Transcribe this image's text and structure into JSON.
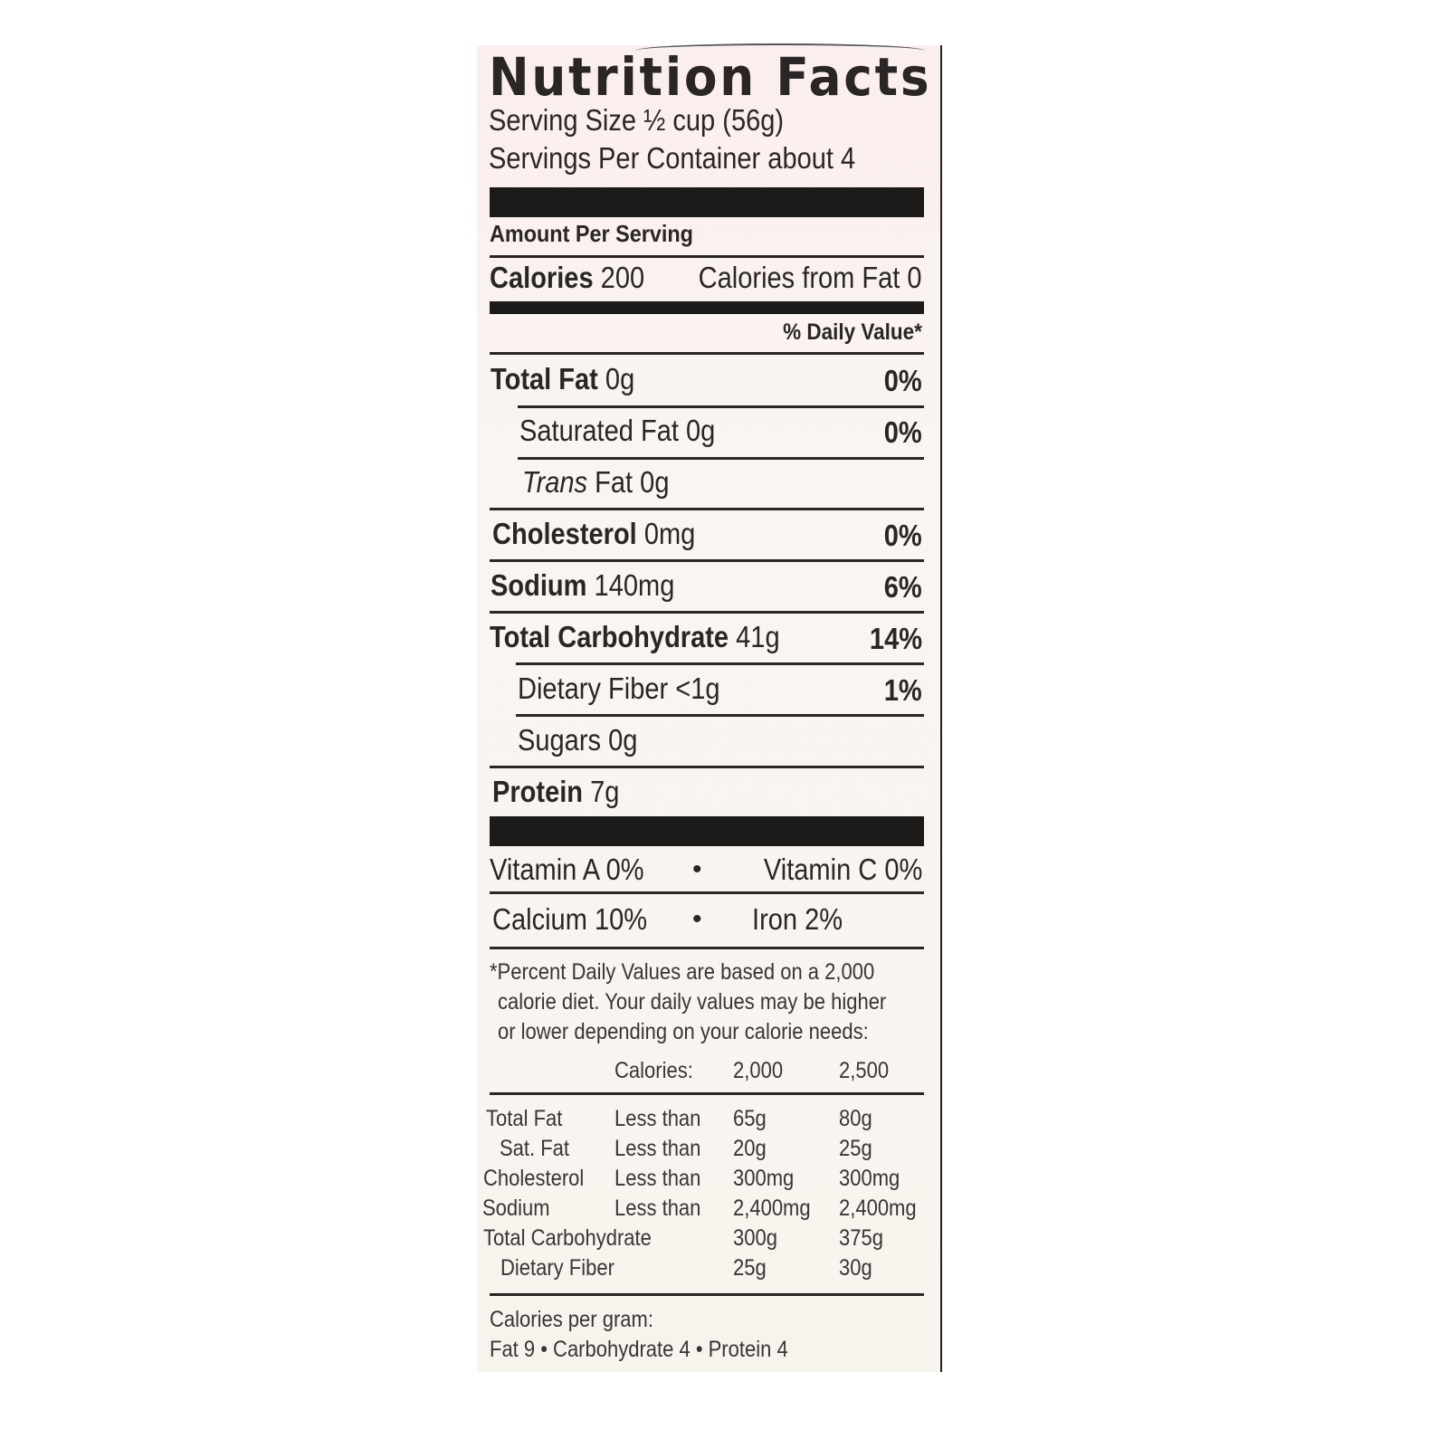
{
  "title": "Nutrition Facts",
  "serving_size": "Serving Size ½ cup (56g)",
  "servings_per_container": "Servings Per Container about 4",
  "amount_per_serving": "Amount Per Serving",
  "calories": {
    "label": "Calories",
    "value": "200",
    "from_fat": "Calories from Fat 0"
  },
  "daily_value_header": "% Daily Value*",
  "nutrients": [
    {
      "label": "Total Fat",
      "amount": "0g",
      "dv": "0%"
    },
    {
      "label": "Saturated Fat",
      "amount": "0g",
      "dv": "0%"
    },
    {
      "label": "Trans",
      "label2": "Fat",
      "amount": "0g"
    },
    {
      "label": "Cholesterol",
      "amount": "0mg",
      "dv": "0%"
    },
    {
      "label": "Sodium",
      "amount": "140mg",
      "dv": "6%"
    },
    {
      "label": "Total Carbohydrate",
      "amount": "41g",
      "dv": "14%"
    },
    {
      "label": "Dietary Fiber",
      "amount": "<1g",
      "dv": "1%"
    },
    {
      "label": "Sugars",
      "amount": "0g"
    },
    {
      "label": "Protein",
      "amount": "7g"
    }
  ],
  "vitamins": [
    {
      "left": "Vitamin A 0%",
      "right": "Vitamin C 0%"
    },
    {
      "left": "Calcium 10%",
      "right": "Iron 2%"
    }
  ],
  "bullet": "•",
  "footnote": [
    "*Percent Daily Values are based on a 2,000",
    "calorie diet. Your daily values may be higher",
    "or lower depending on your calorie needs:"
  ],
  "dv_table": {
    "header": [
      "Calories:",
      "2,000",
      "2,500"
    ],
    "rows": [
      [
        "Total Fat",
        "Less than",
        "65g",
        "80g"
      ],
      [
        "Sat. Fat",
        "Less than",
        "20g",
        "25g"
      ],
      [
        "Cholesterol",
        "Less than",
        "300mg",
        "300mg"
      ],
      [
        "Sodium",
        "Less than",
        "2,400mg",
        "2,400mg"
      ],
      [
        "Total Carbohydrate",
        "",
        "300g",
        "375g"
      ],
      [
        "Dietary Fiber",
        "",
        "25g",
        "30g"
      ]
    ]
  },
  "calories_per_gram": {
    "label": "Calories per gram:",
    "values": "Fat 9 • Carbohydrate 4 • Protein 4"
  }
}
